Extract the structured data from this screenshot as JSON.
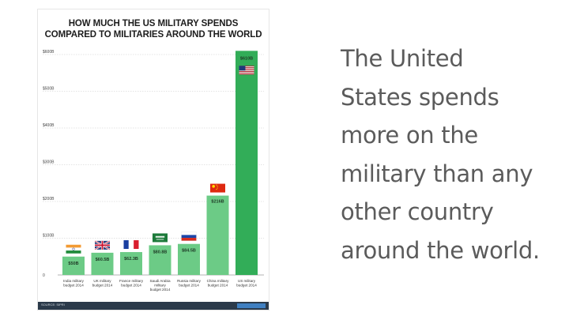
{
  "chart_data": {
    "type": "bar",
    "title": "HOW MUCH THE US MILITARY SPENDS COMPARED TO MILITARIES AROUND THE WORLD",
    "title_lines": [
      "HOW MUCH THE US MILITARY SPENDS",
      "COMPARED TO MILITARIES AROUND THE WORLD"
    ],
    "categories": [
      "India military budget 2014",
      "UK military budget 2014",
      "France military budget 2014",
      "Saudi Arabia military budget 2014",
      "Russia military budget 2014",
      "China military budget 2014",
      "US military budget 2014"
    ],
    "category_lines": [
      [
        "India military",
        "budget 2014"
      ],
      [
        "UK military",
        "budget 2014"
      ],
      [
        "France military",
        "budget 2014"
      ],
      [
        "Saudi Arabia",
        "military",
        "budget 2014"
      ],
      [
        "Russia military",
        "budget 2014"
      ],
      [
        "China military",
        "budget 2014"
      ],
      [
        "US military",
        "budget 2014"
      ]
    ],
    "values": [
      50,
      60.5,
      62.3,
      80.8,
      84.5,
      216,
      610
    ],
    "value_labels": [
      "$50B",
      "$60.5B",
      "$62.3B",
      "$80.8B",
      "$84.5B",
      "$216B",
      "$610B"
    ],
    "flags": [
      "india-flag",
      "uk-flag",
      "france-flag",
      "saudi-arabia-flag",
      "russia-flag",
      "china-flag",
      "us-flag"
    ],
    "ytick_values": [
      0,
      100,
      200,
      300,
      400,
      500,
      600
    ],
    "ytick_labels": [
      "0",
      "$100B",
      "$200B",
      "$300B",
      "$400B",
      "$500B",
      "$600B"
    ],
    "ylim": [
      0,
      610
    ],
    "grid": true,
    "colors": {
      "bar": "#6ccb86",
      "bar_highlight": "#32ad58",
      "grid": "#c9c9c9"
    }
  },
  "footer": {
    "source": "SOURCE: SIPRI"
  },
  "side_text": {
    "lines": [
      "The United",
      "States spends",
      "more on the",
      "military than any",
      "other country",
      "around the world."
    ]
  }
}
